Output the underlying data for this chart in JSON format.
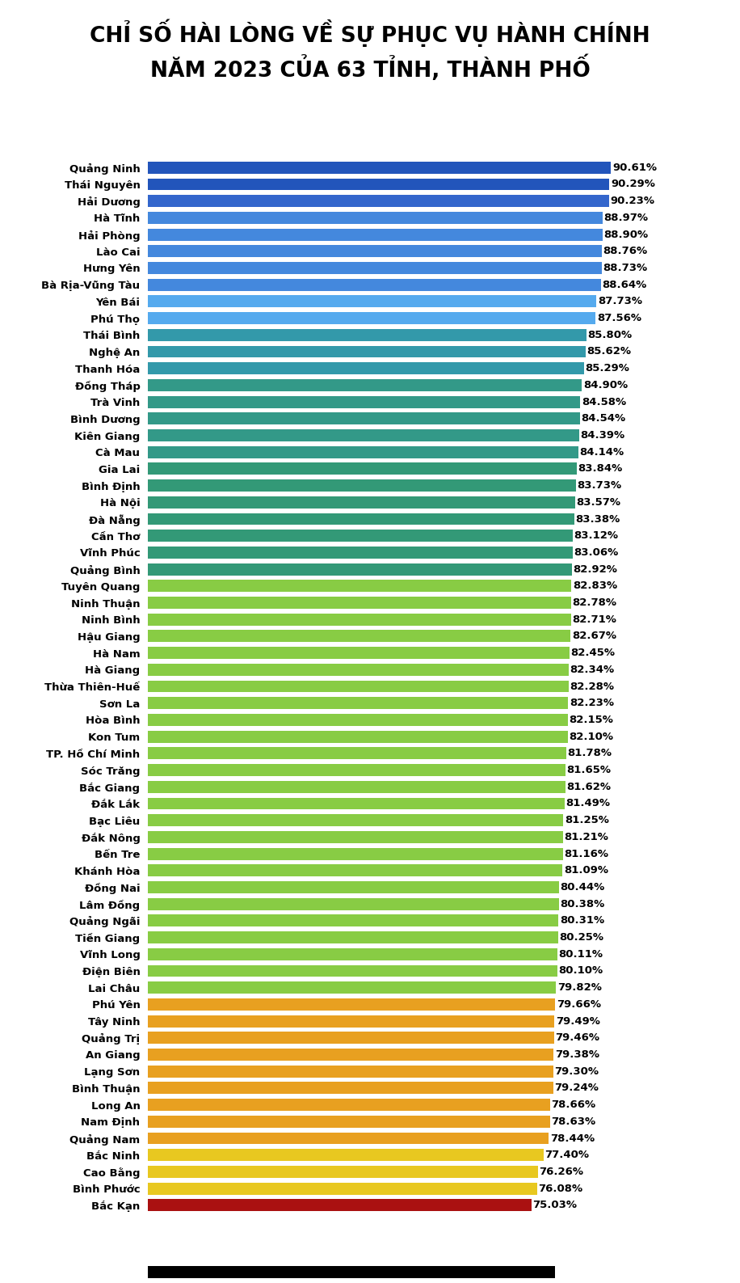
{
  "title": "CHỈ SỐ HÀI LÒNG VỀ SỰ PHỤC VỤ HÀNH CHÍNH\nNĂM 2023 CỦA 63 TỈNH, THÀNH PHỐ",
  "categories": [
    "Quảng Ninh",
    "Thái Nguyên",
    "Hải Dương",
    "Hà Tĩnh",
    "Hải Phòng",
    "Lào Cai",
    "Hưng Yên",
    "Bà Rịa-Vũng Tàu",
    "Yên Bái",
    "Phú Thọ",
    "Thái Bình",
    "Nghệ An",
    "Thanh Hóa",
    "Đồng Tháp",
    "Trà Vinh",
    "Bình Dương",
    "Kiên Giang",
    "Cà Mau",
    "Gia Lai",
    "Bình Định",
    "Hà Nội",
    "Đà Nẵng",
    "Cần Thơ",
    "Vĩnh Phúc",
    "Quảng Bình",
    "Tuyên Quang",
    "Ninh Thuận",
    "Ninh Bình",
    "Hậu Giang",
    "Hà Nam",
    "Hà Giang",
    "Thừa Thiên-Huế",
    "Sơn La",
    "Hòa Bình",
    "Kon Tum",
    "TP. Hồ Chí Minh",
    "Sóc Trăng",
    "Bắc Giang",
    "Đắk Lắk",
    "Bạc Liêu",
    "Đắk Nông",
    "Bến Tre",
    "Khánh Hòa",
    "Đồng Nai",
    "Lâm Đồng",
    "Quảng Ngãi",
    "Tiền Giang",
    "Vĩnh Long",
    "Điện Biên",
    "Lai Châu",
    "Phú Yên",
    "Tây Ninh",
    "Quảng Trị",
    "An Giang",
    "Lạng Sơn",
    "Bình Thuận",
    "Long An",
    "Nam Định",
    "Quảng Nam",
    "Bắc Ninh",
    "Cao Bằng",
    "Bình Phước",
    "Bắc Kạn"
  ],
  "values": [
    90.61,
    90.29,
    90.23,
    88.97,
    88.9,
    88.76,
    88.73,
    88.64,
    87.73,
    87.56,
    85.8,
    85.62,
    85.29,
    84.9,
    84.58,
    84.54,
    84.39,
    84.14,
    83.84,
    83.73,
    83.57,
    83.38,
    83.12,
    83.06,
    82.92,
    82.83,
    82.78,
    82.71,
    82.67,
    82.45,
    82.34,
    82.28,
    82.23,
    82.15,
    82.1,
    81.78,
    81.65,
    81.62,
    81.49,
    81.25,
    81.21,
    81.16,
    81.09,
    80.44,
    80.38,
    80.31,
    80.25,
    80.11,
    80.1,
    79.82,
    79.66,
    79.49,
    79.46,
    79.38,
    79.3,
    79.24,
    78.66,
    78.63,
    78.44,
    77.4,
    76.26,
    76.08,
    75.03
  ],
  "bar_colors": [
    "#2255BB",
    "#2255BB",
    "#3366CC",
    "#4488DD",
    "#4488DD",
    "#4488DD",
    "#4488DD",
    "#4488DD",
    "#55AAEE",
    "#55AAEE",
    "#3399AA",
    "#3399AA",
    "#3399AA",
    "#339988",
    "#339988",
    "#339988",
    "#339988",
    "#339988",
    "#339977",
    "#339977",
    "#339977",
    "#339977",
    "#339977",
    "#339977",
    "#339977",
    "#88CC44",
    "#88CC44",
    "#88CC44",
    "#88CC44",
    "#88CC44",
    "#88CC44",
    "#88CC44",
    "#88CC44",
    "#88CC44",
    "#88CC44",
    "#88CC44",
    "#88CC44",
    "#88CC44",
    "#88CC44",
    "#88CC44",
    "#88CC44",
    "#88CC44",
    "#88CC44",
    "#88CC44",
    "#88CC44",
    "#88CC44",
    "#88CC44",
    "#88CC44",
    "#88CC44",
    "#88CC44",
    "#E8A020",
    "#E8A020",
    "#E8A020",
    "#E8A020",
    "#E8A020",
    "#E8A020",
    "#E8A020",
    "#E8A020",
    "#E8A020",
    "#E8C820",
    "#E8C820",
    "#E8C820",
    "#AA1111"
  ],
  "bg_color": "#FFFFFF",
  "title_fontsize": 19,
  "label_fontsize": 9.5,
  "value_fontsize": 9.5
}
